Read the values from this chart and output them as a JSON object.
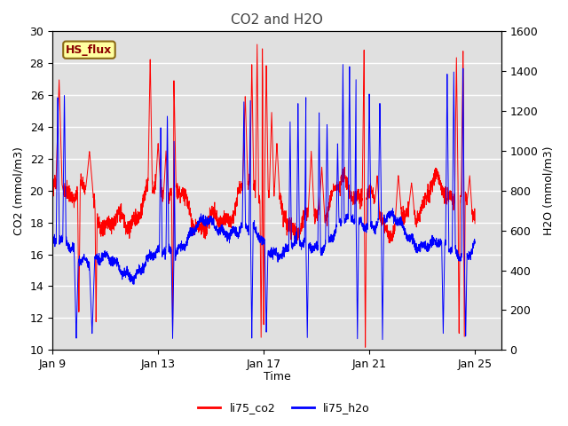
{
  "title": "CO2 and H2O",
  "xlabel": "Time",
  "ylabel_left": "CO2 (mmol/m3)",
  "ylabel_right": "H2O (mmol/m3)",
  "ylim_left": [
    10,
    30
  ],
  "ylim_right": [
    0,
    1600
  ],
  "xtick_labels": [
    "Jan 9",
    "Jan 13",
    "Jan 17",
    "Jan 21",
    "Jan 25"
  ],
  "xtick_positions": [
    0,
    4,
    8,
    12,
    16
  ],
  "xlim": [
    0,
    17
  ],
  "yticks_left": [
    10,
    12,
    14,
    16,
    18,
    20,
    22,
    24,
    26,
    28,
    30
  ],
  "yticks_right": [
    0,
    200,
    400,
    600,
    800,
    1000,
    1200,
    1400,
    1600
  ],
  "legend_labels": [
    "li75_co2",
    "li75_h2o"
  ],
  "box_label": "HS_flux",
  "box_facecolor": "#FFFFA0",
  "box_edgecolor": "#8B6914",
  "box_textcolor": "#8B0000",
  "axis_bg": "#E0E0E0",
  "grid_color": "#FFFFFF",
  "title_color": "#444444",
  "line_lw": 0.7,
  "num_points": 3000,
  "seed": 123
}
